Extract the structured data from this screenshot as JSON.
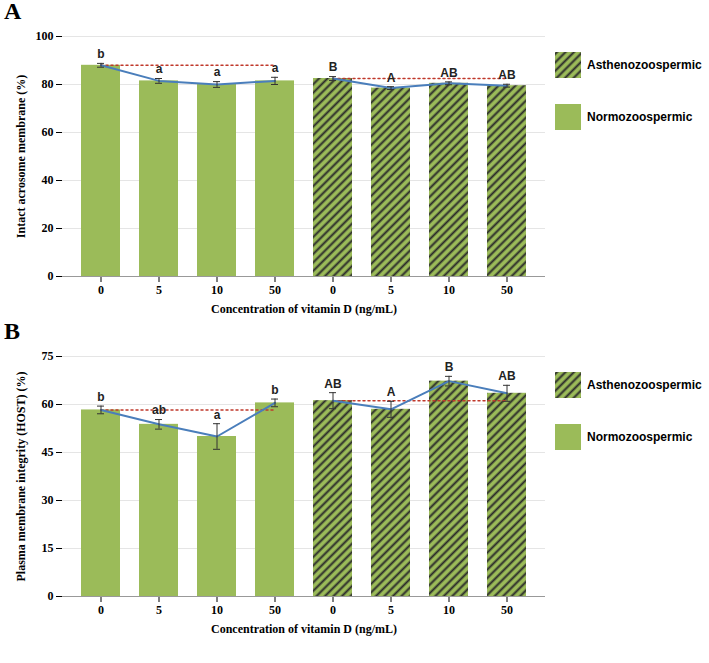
{
  "chart_data": [
    {
      "type": "bar",
      "title": "A",
      "x_label": "Concentration of vitamin D (ng/mL)",
      "y_label": "Intact acrosome membrane (%)",
      "categories": [
        "0",
        "5",
        "10",
        "50",
        "0",
        "5",
        "10",
        "50"
      ],
      "series": [
        {
          "name": "Asthenozoospermic",
          "color": "#9bbb59",
          "marker": "hatched",
          "values": [
            null,
            null,
            null,
            null,
            82.5,
            78.5,
            80.5,
            79.5
          ],
          "errors": [
            null,
            null,
            null,
            null,
            0.8,
            0.6,
            0.6,
            0.6
          ],
          "significance_labels": [
            null,
            null,
            null,
            null,
            "B",
            "A",
            "AB",
            "AB"
          ]
        },
        {
          "name": "Normozoospermic",
          "color": "#9bbb59",
          "marker": "solid",
          "values": [
            88,
            81.5,
            80,
            81.5,
            null,
            null,
            null,
            null
          ],
          "errors": [
            0.8,
            1.0,
            1.2,
            1.5,
            null,
            null,
            null,
            null
          ],
          "significance_labels": [
            "b",
            "a",
            "a",
            "a",
            null,
            null,
            null,
            null
          ]
        }
      ],
      "ylim": [
        0,
        100
      ],
      "yticks": [
        0,
        20,
        40,
        60,
        80,
        100
      ],
      "grid": true,
      "legend": "right"
    },
    {
      "type": "bar",
      "title": "B",
      "x_label": "Concentration of vitamin D (ng/mL)",
      "y_label": "Plasma membrane integrity (HOST) (%)",
      "categories": [
        "0",
        "5",
        "10",
        "50",
        "0",
        "5",
        "10",
        "50"
      ],
      "series": [
        {
          "name": "Asthenozoospermic",
          "color": "#9bbb59",
          "marker": "hatched",
          "values": [
            null,
            null,
            null,
            null,
            61.2,
            58.5,
            67.3,
            63.5
          ],
          "errors": [
            null,
            null,
            null,
            null,
            2.5,
            2.5,
            1.5,
            2.5
          ],
          "significance_labels": [
            null,
            null,
            null,
            null,
            "AB",
            "A",
            "B",
            "AB"
          ]
        },
        {
          "name": "Normozoospermic",
          "color": "#9bbb59",
          "marker": "solid",
          "values": [
            58.3,
            53.8,
            50,
            60.5,
            null,
            null,
            null,
            null
          ],
          "errors": [
            1.2,
            1.5,
            4,
            1.2,
            null,
            null,
            null,
            null
          ],
          "significance_labels": [
            "b",
            "ab",
            "a",
            "b",
            null,
            null,
            null,
            null
          ]
        }
      ],
      "ylim": [
        0,
        75
      ],
      "yticks": [
        0,
        15,
        30,
        45,
        60,
        75
      ],
      "grid": true,
      "legend": "right"
    }
  ]
}
